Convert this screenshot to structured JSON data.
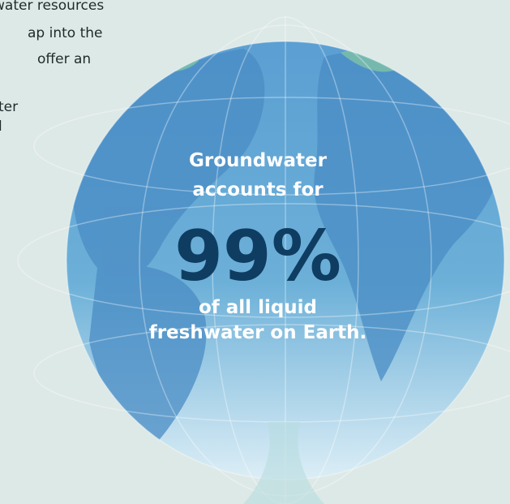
{
  "intro_lines": [
    "water resources",
    "ap into the",
    "offer an",
    "ter",
    "l"
  ],
  "globe": {
    "line1": "Groundwater",
    "line2": "accounts for",
    "stat": "99%",
    "line3": "of all liquid",
    "line4": "freshwater on Earth."
  }
}
